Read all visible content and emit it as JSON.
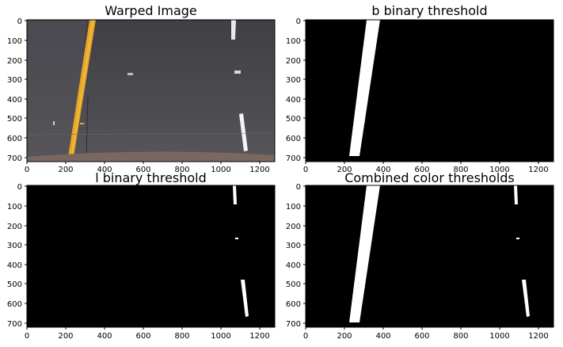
{
  "figure": {
    "panels": [
      {
        "id": "warped",
        "title": "Warped Image",
        "xticks": [
          "0",
          "200",
          "400",
          "600",
          "800",
          "1000",
          "1200"
        ],
        "yticks": [
          "0",
          "100",
          "200",
          "300",
          "400",
          "500",
          "600",
          "700"
        ]
      },
      {
        "id": "b_binary",
        "title": "b binary threshold",
        "xticks": [
          "0",
          "200",
          "400",
          "600",
          "800",
          "1000",
          "1200"
        ],
        "yticks": [
          "0",
          "100",
          "200",
          "300",
          "400",
          "500",
          "600",
          "700"
        ]
      },
      {
        "id": "l_binary",
        "title": "l binary threshold",
        "xticks": [
          "0",
          "200",
          "400",
          "600",
          "800",
          "1000",
          "1200"
        ],
        "yticks": [
          "0",
          "100",
          "200",
          "300",
          "400",
          "500",
          "600",
          "700"
        ]
      },
      {
        "id": "combined",
        "title": "Combined color thresholds",
        "xticks": [
          "0",
          "200",
          "400",
          "600",
          "800",
          "1000",
          "1200"
        ],
        "yticks": [
          "0",
          "100",
          "200",
          "300",
          "400",
          "500",
          "600",
          "700"
        ]
      }
    ]
  },
  "colors": {
    "lane_yellow": "#e8a523",
    "road_gray": "#4a4a4f",
    "road_bottom": "#6b5a54",
    "binary_bg": "#000000",
    "binary_fg": "#ffffff"
  }
}
